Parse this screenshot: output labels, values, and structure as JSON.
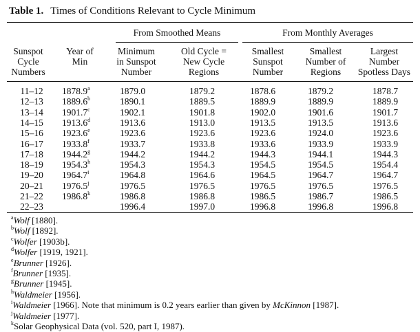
{
  "table": {
    "number": "Table 1.",
    "title": "Times of Conditions Relevant to Cycle Minimum",
    "groups": [
      "From Smoothed Means",
      "From Monthly Averages"
    ],
    "columns": [
      "Sunspot\nCycle\nNumbers",
      "Year of\nMin",
      "Minimum\nin Sunspot\nNumber",
      "Old Cycle =\nNew Cycle\nRegions",
      "Smallest\nSunspot\nNumber",
      "Smallest\nNumber of\nRegions",
      "Largest\nNumber\nSpotless Days"
    ],
    "rows": [
      {
        "cycle": "11–12",
        "year": "1878.9",
        "mark": "a",
        "min": "1879.0",
        "old": "1879.2",
        "ss": "1878.6",
        "sr": "1879.2",
        "sd": "1878.7"
      },
      {
        "cycle": "12–13",
        "year": "1889.6",
        "mark": "b",
        "min": "1890.1",
        "old": "1889.5",
        "ss": "1889.9",
        "sr": "1889.9",
        "sd": "1889.9"
      },
      {
        "cycle": "13–14",
        "year": "1901.7",
        "mark": "c",
        "min": "1902.1",
        "old": "1901.8",
        "ss": "1902.0",
        "sr": "1901.6",
        "sd": "1901.7"
      },
      {
        "cycle": "14–15",
        "year": "1913.6",
        "mark": "d",
        "min": "1913.6",
        "old": "1913.0",
        "ss": "1913.5",
        "sr": "1913.5",
        "sd": "1913.6"
      },
      {
        "cycle": "15–16",
        "year": "1923.6",
        "mark": "e",
        "min": "1923.6",
        "old": "1923.6",
        "ss": "1923.6",
        "sr": "1924.0",
        "sd": "1923.6"
      },
      {
        "cycle": "16–17",
        "year": "1933.8",
        "mark": "f",
        "min": "1933.7",
        "old": "1933.8",
        "ss": "1933.6",
        "sr": "1933.9",
        "sd": "1933.9"
      },
      {
        "cycle": "17–18",
        "year": "1944.2",
        "mark": "g",
        "min": "1944.2",
        "old": "1944.2",
        "ss": "1944.3",
        "sr": "1944.1",
        "sd": "1944.3"
      },
      {
        "cycle": "18–19",
        "year": "1954.3",
        "mark": "h",
        "min": "1954.3",
        "old": "1954.3",
        "ss": "1954.5",
        "sr": "1954.5",
        "sd": "1954.4"
      },
      {
        "cycle": "19–20",
        "year": "1964.7",
        "mark": "i",
        "min": "1964.8",
        "old": "1964.6",
        "ss": "1964.5",
        "sr": "1964.7",
        "sd": "1964.7"
      },
      {
        "cycle": "20–21",
        "year": "1976.5",
        "mark": "j",
        "min": "1976.5",
        "old": "1976.5",
        "ss": "1976.5",
        "sr": "1976.5",
        "sd": "1976.5"
      },
      {
        "cycle": "21–22",
        "year": "1986.8",
        "mark": "k",
        "min": "1986.8",
        "old": "1986.8",
        "ss": "1986.5",
        "sr": "1986.7",
        "sd": "1986.5"
      },
      {
        "cycle": "22–23",
        "year": "",
        "mark": "",
        "min": "1996.4",
        "old": "1997.0",
        "ss": "1996.8",
        "sr": "1996.8",
        "sd": "1996.8"
      }
    ],
    "footnotes": [
      {
        "mark": "a",
        "author": "Wolf",
        "rest": " [1880]."
      },
      {
        "mark": "b",
        "author": "Wolf",
        "rest": " [1892]."
      },
      {
        "mark": "c",
        "author": "Wolfer",
        "rest": " [1903b]."
      },
      {
        "mark": "d",
        "author": "Wolfer",
        "rest": " [1919, 1921]."
      },
      {
        "mark": "e",
        "author": "Brunner",
        "rest": " [1926]."
      },
      {
        "mark": "f",
        "author": "Brunner",
        "rest": " [1935]."
      },
      {
        "mark": "g",
        "author": "Brunner",
        "rest": " [1945]."
      },
      {
        "mark": "h",
        "author": "Waldmeier",
        "rest": " [1956]."
      },
      {
        "mark": "i",
        "author": "Waldmeier",
        "rest": " [1966]. Note that minimum is 0.2 years earlier than given by ",
        "author2": "McKinnon",
        "rest2": " [1987]."
      },
      {
        "mark": "j",
        "author": "Waldmeier",
        "rest": " [1977]."
      },
      {
        "mark": "k",
        "author": "",
        "rest": "Solar Geophysical Data (vol. 520, part I, 1987)."
      }
    ]
  }
}
